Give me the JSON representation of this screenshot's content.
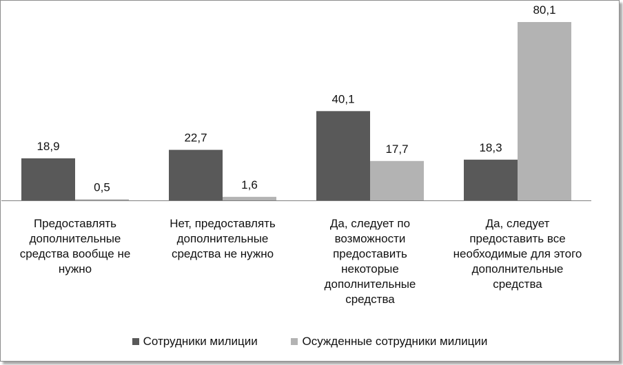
{
  "chart_data": {
    "type": "bar",
    "categories": [
      "Предоставлять дополнительные средства вообще не нужно",
      "Нет, предоставлять дополнительные средства не нужно",
      "Да, следует по возможности предоставить некоторые дополнительные средства",
      "Да, следует предоставить все необходимые для этого дополнительные средства"
    ],
    "series": [
      {
        "name": "Сотрудники милиции",
        "values": [
          18.9,
          22.7,
          40.1,
          18.3
        ],
        "labels": [
          "18,9",
          "22,7",
          "40,1",
          "18,3"
        ],
        "color": "#595959"
      },
      {
        "name": "Осужденные сотрудники милиции",
        "values": [
          0.5,
          1.6,
          17.7,
          80.1
        ],
        "labels": [
          "0,5",
          "1,6",
          "17,7",
          "80,1"
        ],
        "color": "#b3b3b3"
      }
    ],
    "ylim": [
      0,
      80.1
    ],
    "grid": false,
    "legend": "bottom"
  }
}
